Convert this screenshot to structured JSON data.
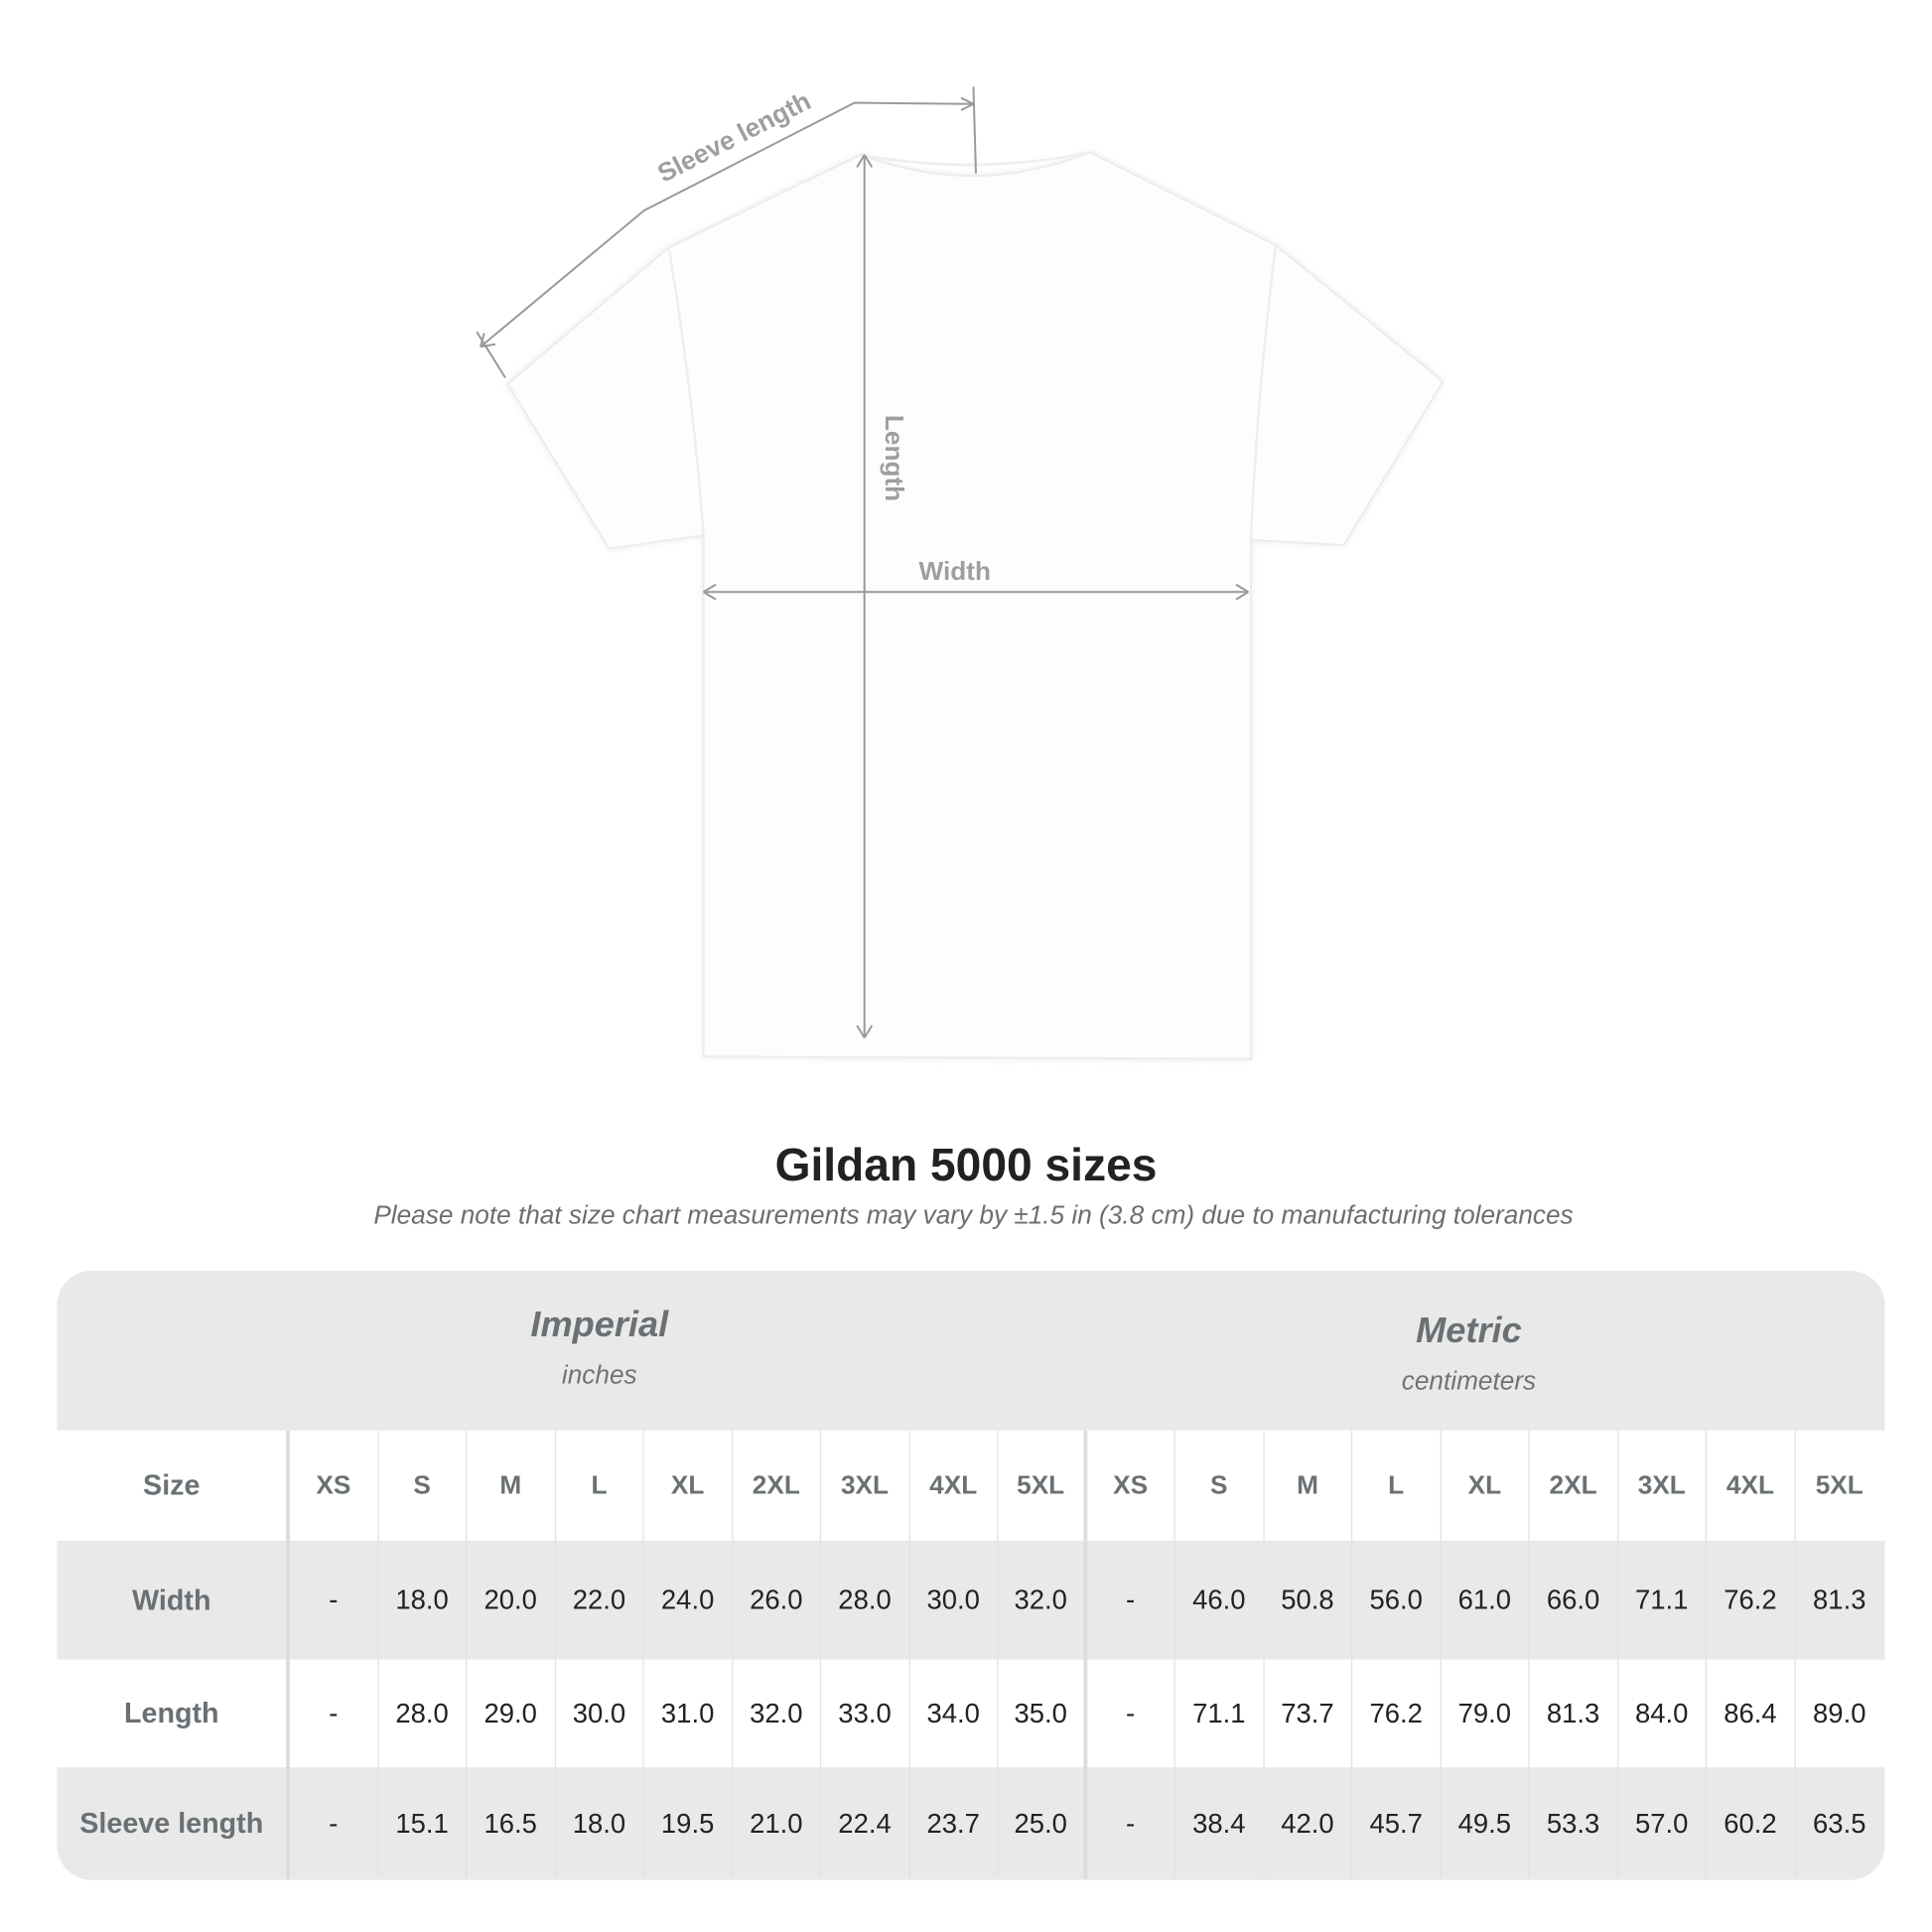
{
  "diagram": {
    "labels": {
      "sleeve": "Sleeve length",
      "length": "Length",
      "width": "Width"
    },
    "shirt_color": "#ffffff",
    "line_color": "#9a9a9a"
  },
  "title": "Gildan 5000 sizes",
  "subtitle": "Please note that size chart measurements may vary by ±1.5 in (3.8 cm) due to manufacturing tolerances",
  "table": {
    "groups": [
      {
        "title": "Imperial",
        "unit": "inches"
      },
      {
        "title": "Metric",
        "unit": "centimeters"
      }
    ],
    "size_label": "Size",
    "sizes": [
      "XS",
      "S",
      "M",
      "L",
      "XL",
      "2XL",
      "3XL",
      "4XL",
      "5XL",
      "XS",
      "S",
      "M",
      "L",
      "XL",
      "2XL",
      "3XL",
      "4XL",
      "5XL"
    ],
    "rows": [
      {
        "label": "Width",
        "values": [
          "-",
          "18.0",
          "20.0",
          "22.0",
          "24.0",
          "26.0",
          "28.0",
          "30.0",
          "32.0",
          "-",
          "46.0",
          "50.8",
          "56.0",
          "61.0",
          "66.0",
          "71.1",
          "76.2",
          "81.3"
        ]
      },
      {
        "label": "Length",
        "values": [
          "-",
          "28.0",
          "29.0",
          "30.0",
          "31.0",
          "32.0",
          "33.0",
          "34.0",
          "35.0",
          "-",
          "71.1",
          "73.7",
          "76.2",
          "79.0",
          "81.3",
          "84.0",
          "86.4",
          "89.0"
        ]
      },
      {
        "label": "Sleeve length",
        "values": [
          "-",
          "15.1",
          "16.5",
          "18.0",
          "19.5",
          "21.0",
          "22.4",
          "23.7",
          "25.0",
          "-",
          "38.4",
          "42.0",
          "45.7",
          "49.5",
          "53.3",
          "57.0",
          "60.2",
          "63.5"
        ]
      }
    ],
    "band_color": "#e9e9e9"
  }
}
